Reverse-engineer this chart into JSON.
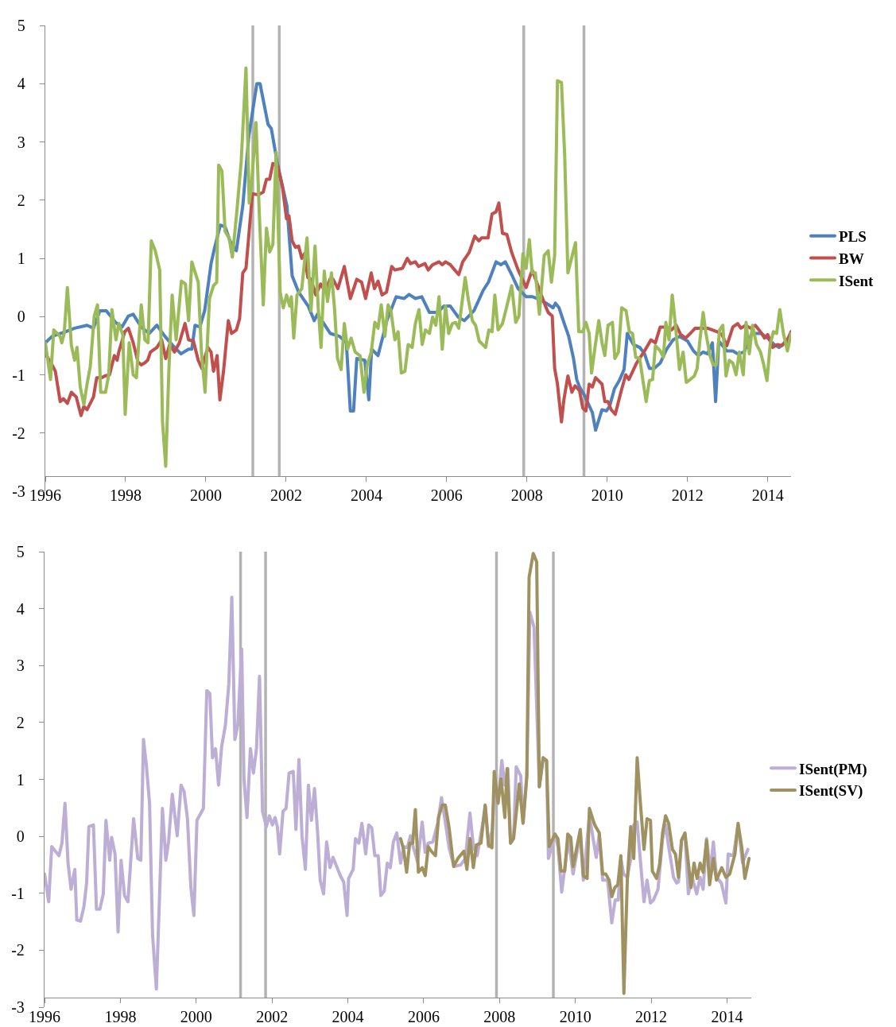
{
  "chart_data": [
    {
      "type": "line",
      "xlim": [
        1996,
        2014.58
      ],
      "xticks": [
        1996,
        1998,
        2000,
        2002,
        2004,
        2006,
        2008,
        2010,
        2012,
        2014
      ],
      "ylim": [
        -3,
        5
      ],
      "yticks": [
        -3,
        -2,
        -1,
        0,
        1,
        2,
        3,
        4,
        5
      ],
      "grid": false,
      "legend": "right",
      "ref_lines": [
        {
          "axis": "x",
          "value": 2001.17,
          "color": "#b3b3b3"
        },
        {
          "axis": "x",
          "value": 2001.83,
          "color": "#b3b3b3"
        },
        {
          "axis": "x",
          "value": 2007.92,
          "color": "#b3b3b3"
        },
        {
          "axis": "x",
          "value": 2009.42,
          "color": "#b3b3b3"
        }
      ],
      "series": [
        {
          "name": "PLS",
          "color": "#4f81bd",
          "x": [
            1996.0,
            1996.17,
            1996.5,
            1996.73,
            1997.04,
            1997.2,
            1997.36,
            1997.52,
            1997.75,
            1997.91,
            1998.07,
            1998.19,
            1998.39,
            1998.59,
            1998.78,
            1998.98,
            1999.18,
            1999.38,
            1999.57,
            1999.65,
            1999.73,
            1999.85,
            1999.97,
            2000.13,
            2000.21,
            2000.36,
            2000.48,
            2000.6,
            2000.76,
            2000.92,
            2001.07,
            2001.27,
            2001.35,
            2001.55,
            2001.63,
            2001.79,
            2002.02,
            2002.15,
            2002.31,
            2002.55,
            2002.7,
            2002.78,
            2002.94,
            2003.1,
            2003.33,
            2003.5,
            2003.6,
            2003.68,
            2003.76,
            2003.96,
            2004.06,
            2004.13,
            2004.29,
            2004.51,
            2004.74,
            2004.94,
            2005.06,
            2005.22,
            2005.38,
            2005.57,
            2005.77,
            2005.93,
            2006.09,
            2006.29,
            2006.44,
            2006.68,
            2006.91,
            2007.04,
            2007.23,
            2007.35,
            2007.46,
            2007.62,
            2007.78,
            2007.98,
            2008.14,
            2008.3,
            2008.48,
            2008.65,
            2008.71,
            2008.8,
            2008.92,
            2009.04,
            2009.16,
            2009.24,
            2009.31,
            2009.43,
            2009.63,
            2009.71,
            2009.87,
            2009.98,
            2010.06,
            2010.18,
            2010.3,
            2010.42,
            2010.5,
            2010.65,
            2010.81,
            2010.93,
            2011.05,
            2011.17,
            2011.32,
            2011.48,
            2011.64,
            2011.8,
            2012.0,
            2012.15,
            2012.27,
            2012.39,
            2012.5,
            2012.62,
            2012.7,
            2012.78,
            2012.98,
            2013.13,
            2013.25,
            2013.41,
            2013.6,
            2013.83,
            2014.0,
            2014.16,
            2014.28,
            2014.43,
            2014.58
          ],
          "values": [
            -0.45,
            -0.34,
            -0.26,
            -0.2,
            -0.15,
            -0.2,
            0.1,
            0.1,
            -0.1,
            -0.18,
            0.01,
            0.04,
            -0.18,
            -0.29,
            -0.15,
            -0.34,
            -0.5,
            -0.64,
            -0.56,
            -0.56,
            -0.15,
            -0.18,
            0.1,
            0.91,
            1.16,
            1.57,
            1.54,
            1.3,
            1.13,
            1.9,
            3.1,
            4.0,
            4.0,
            3.3,
            3.23,
            2.6,
            1.9,
            0.7,
            0.42,
            0.18,
            -0.07,
            0.04,
            -0.12,
            -0.29,
            -0.34,
            -0.45,
            -1.62,
            -1.62,
            -0.72,
            -0.75,
            -1.43,
            -0.56,
            -0.67,
            -0.07,
            0.34,
            0.31,
            0.38,
            0.31,
            0.34,
            0.07,
            0.07,
            0.18,
            0.18,
            -0.01,
            -0.07,
            0.1,
            0.45,
            0.59,
            0.94,
            0.89,
            0.94,
            0.72,
            0.48,
            0.34,
            0.34,
            0.3,
            0.23,
            0.15,
            0.23,
            0.15,
            -0.1,
            -0.34,
            -0.72,
            -1.08,
            -1.21,
            -1.35,
            -1.65,
            -1.95,
            -1.6,
            -1.62,
            -1.54,
            -1.24,
            -1.1,
            -0.91,
            -0.29,
            -0.48,
            -0.53,
            -0.64,
            -0.89,
            -0.89,
            -0.8,
            -0.56,
            -0.4,
            -0.34,
            -0.42,
            -0.59,
            -0.67,
            -0.61,
            -0.64,
            -0.45,
            -1.46,
            -0.42,
            -0.59,
            -0.59,
            -0.64,
            -0.61,
            -0.29,
            -0.29,
            -0.37,
            -0.48,
            -0.53,
            -0.45,
            -0.4
          ]
        },
        {
          "name": "BW",
          "color": "#c0504d",
          "x": [
            1996.0,
            1996.17,
            1996.25,
            1996.37,
            1996.45,
            1996.55,
            1996.65,
            1996.77,
            1996.89,
            1996.96,
            1997.04,
            1997.2,
            1997.28,
            1997.4,
            1997.48,
            1997.6,
            1997.72,
            1997.79,
            1997.83,
            1997.98,
            1998.07,
            1998.19,
            1998.31,
            1998.39,
            1998.47,
            1998.55,
            1998.62,
            1998.78,
            1998.9,
            1999.0,
            1999.1,
            1999.22,
            1999.34,
            1999.48,
            1999.57,
            1999.69,
            1999.81,
            1999.9,
            2000.05,
            2000.13,
            2000.19,
            2000.28,
            2000.35,
            2000.44,
            2000.56,
            2000.64,
            2000.76,
            2000.84,
            2000.92,
            2001.0,
            2001.12,
            2001.16,
            2001.31,
            2001.43,
            2001.51,
            2001.59,
            2001.67,
            2001.79,
            2001.91,
            2002.01,
            2002.07,
            2002.15,
            2002.23,
            2002.31,
            2002.39,
            2002.46,
            2002.54,
            2002.62,
            2002.74,
            2002.86,
            2002.98,
            2003.09,
            2003.17,
            2003.29,
            2003.45,
            2003.6,
            2003.76,
            2003.88,
            2003.98,
            2004.12,
            2004.2,
            2004.29,
            2004.39,
            2004.5,
            2004.63,
            2004.71,
            2004.9,
            2005.02,
            2005.1,
            2005.22,
            2005.3,
            2005.46,
            2005.54,
            2005.65,
            2005.81,
            2005.89,
            2005.97,
            2006.09,
            2006.2,
            2006.3,
            2006.4,
            2006.56,
            2006.7,
            2006.8,
            2006.87,
            2007.03,
            2007.13,
            2007.23,
            2007.3,
            2007.39,
            2007.5,
            2007.62,
            2007.78,
            2007.98,
            2008.13,
            2008.29,
            2008.45,
            2008.53,
            2008.63,
            2008.69,
            2008.76,
            2008.86,
            2008.92,
            2009.02,
            2009.12,
            2009.2,
            2009.31,
            2009.39,
            2009.47,
            2009.55,
            2009.63,
            2009.71,
            2009.87,
            2009.94,
            2010.02,
            2010.1,
            2010.2,
            2010.34,
            2010.46,
            2010.54,
            2010.73,
            2010.93,
            2011.09,
            2011.2,
            2011.32,
            2011.48,
            2011.6,
            2011.72,
            2011.83,
            2011.95,
            2012.07,
            2012.19,
            2012.35,
            2012.5,
            2012.62,
            2012.74,
            2012.86,
            2012.98,
            2013.13,
            2013.25,
            2013.33,
            2013.45,
            2013.57,
            2013.69,
            2013.85,
            2013.92,
            2014.0,
            2014.12,
            2014.24,
            2014.35,
            2014.51,
            2014.58
          ],
          "values": [
            -0.64,
            -0.83,
            -0.94,
            -1.46,
            -1.41,
            -1.49,
            -1.3,
            -1.38,
            -1.7,
            -1.54,
            -1.6,
            -1.38,
            -1.05,
            -1.05,
            -1.02,
            -1.0,
            -0.67,
            -0.75,
            -0.61,
            -0.26,
            -0.2,
            -0.45,
            -0.78,
            -0.83,
            -0.8,
            -0.75,
            -0.61,
            -0.53,
            -0.4,
            -0.72,
            -0.48,
            -0.61,
            -0.45,
            -0.12,
            -0.4,
            -0.42,
            -0.75,
            -0.89,
            -0.53,
            -0.61,
            -0.94,
            -0.67,
            -1.43,
            -0.94,
            -0.07,
            -0.29,
            -0.23,
            -0.04,
            0.75,
            0.83,
            1.79,
            2.11,
            2.09,
            2.14,
            2.36,
            2.36,
            2.63,
            2.58,
            2.22,
            1.68,
            1.73,
            1.3,
            1.19,
            1.21,
            1.0,
            1.08,
            0.67,
            0.64,
            0.37,
            0.56,
            0.42,
            0.64,
            0.64,
            0.48,
            0.86,
            0.31,
            0.64,
            0.59,
            0.31,
            0.75,
            0.48,
            0.61,
            0.37,
            0.42,
            0.86,
            0.8,
            0.83,
            1.0,
            0.91,
            0.94,
            0.86,
            0.91,
            0.8,
            0.89,
            0.94,
            0.89,
            0.94,
            0.89,
            0.8,
            0.72,
            0.94,
            1.1,
            1.38,
            1.3,
            1.35,
            1.35,
            1.76,
            1.8,
            1.95,
            1.43,
            1.41,
            1.1,
            0.8,
            0.5,
            0.8,
            0.5,
            0.2,
            0.07,
            0.01,
            -0.89,
            -1.16,
            -1.81,
            -1.43,
            -1.02,
            -1.3,
            -1.19,
            -1.27,
            -1.57,
            -1.62,
            -1.16,
            -1.21,
            -1.05,
            -1.16,
            -1.46,
            -1.46,
            -1.6,
            -1.68,
            -1.3,
            -1.0,
            -1.08,
            -0.8,
            -0.59,
            -0.4,
            -0.45,
            -0.18,
            -0.18,
            -0.23,
            -0.15,
            -0.31,
            -0.37,
            -0.29,
            -0.2,
            -0.2,
            -0.2,
            -0.23,
            -0.26,
            -0.31,
            -0.5,
            -0.18,
            -0.12,
            -0.2,
            -0.15,
            -0.2,
            -0.15,
            -0.29,
            -0.37,
            -0.31,
            -0.53,
            -0.48,
            -0.5,
            -0.37,
            -0.26
          ]
        },
        {
          "name": "ISent",
          "color": "#9bbb59",
          "x": [
            1996.0,
            1996.13,
            1996.21,
            1996.37,
            1996.41,
            1996.47,
            1996.55,
            1996.65,
            1996.73,
            1996.79,
            1996.87,
            1996.96,
            1997.04,
            1997.12,
            1997.22,
            1997.3,
            1997.38,
            1997.5,
            1997.58,
            1997.66,
            1997.76,
            1997.83,
            1997.93,
            1997.99,
            1998.09,
            1998.19,
            1998.27,
            1998.39,
            1998.48,
            1998.56,
            1998.64,
            1998.74,
            1998.85,
            1998.92,
            1999.0,
            1999.08,
            1999.16,
            1999.26,
            1999.39,
            1999.49,
            1999.57,
            1999.65,
            1999.81,
            1999.89,
            1999.98,
            2000.09,
            2000.19,
            2000.27,
            2000.32,
            2000.4,
            2000.48,
            2000.58,
            2000.66,
            2000.77,
            2000.88,
            2001.0,
            2001.08,
            2001.14,
            2001.25,
            2001.33,
            2001.43,
            2001.51,
            2001.59,
            2001.67,
            2001.75,
            2001.85,
            2001.93,
            2002.01,
            2002.09,
            2002.13,
            2002.19,
            2002.27,
            2002.39,
            2002.52,
            2002.62,
            2002.72,
            2002.8,
            2002.87,
            2002.95,
            2003.03,
            2003.13,
            2003.21,
            2003.28,
            2003.37,
            2003.45,
            2003.53,
            2003.62,
            2003.72,
            2003.84,
            2003.94,
            2004.02,
            2004.12,
            2004.21,
            2004.29,
            2004.37,
            2004.46,
            2004.54,
            2004.61,
            2004.71,
            2004.79,
            2004.87,
            2004.96,
            2005.04,
            2005.14,
            2005.22,
            2005.31,
            2005.39,
            2005.47,
            2005.57,
            2005.65,
            2005.73,
            2005.81,
            2005.89,
            2005.97,
            2006.05,
            2006.14,
            2006.22,
            2006.3,
            2006.38,
            2006.46,
            2006.54,
            2006.64,
            2006.72,
            2006.81,
            2006.97,
            2007.05,
            2007.13,
            2007.2,
            2007.28,
            2007.39,
            2007.5,
            2007.62,
            2007.72,
            2007.8,
            2007.9,
            2007.98,
            2008.06,
            2008.13,
            2008.21,
            2008.31,
            2008.43,
            2008.53,
            2008.61,
            2008.69,
            2008.76,
            2008.86,
            2008.94,
            2009.02,
            2009.1,
            2009.21,
            2009.29,
            2009.39,
            2009.47,
            2009.55,
            2009.61,
            2009.69,
            2009.79,
            2009.87,
            2009.94,
            2010.02,
            2010.13,
            2010.19,
            2010.28,
            2010.36,
            2010.47,
            2010.55,
            2010.63,
            2010.71,
            2010.81,
            2010.89,
            2010.97,
            2011.05,
            2011.13,
            2011.2,
            2011.32,
            2011.4,
            2011.46,
            2011.54,
            2011.62,
            2011.7,
            2011.8,
            2011.89,
            2011.97,
            2012.07,
            2012.17,
            2012.24,
            2012.31,
            2012.39,
            2012.46,
            2012.56,
            2012.64,
            2012.72,
            2012.8,
            2012.88,
            2012.96,
            2013.04,
            2013.13,
            2013.21,
            2013.29,
            2013.39,
            2013.46,
            2013.54,
            2013.62,
            2013.72,
            2013.82,
            2013.9,
            2013.98,
            2014.06,
            2014.14,
            2014.22,
            2014.3,
            2014.39,
            2014.49,
            2014.58
          ],
          "values": [
            -0.45,
            -1.08,
            -0.23,
            -0.34,
            -0.45,
            -0.29,
            0.5,
            -0.5,
            -0.75,
            -0.53,
            -1.21,
            -1.51,
            -1.16,
            -0.86,
            0.01,
            0.2,
            -1.3,
            -1.3,
            -1.0,
            0.12,
            -0.4,
            -0.12,
            -0.31,
            -1.68,
            -0.45,
            -1.0,
            -1.05,
            0.2,
            -0.4,
            -0.45,
            1.3,
            1.13,
            0.8,
            -1.81,
            -2.57,
            -0.89,
            0.37,
            -0.4,
            0.61,
            0.56,
            -0.07,
            0.94,
            0.59,
            -0.61,
            -1.3,
            0.31,
            0.53,
            0.59,
            2.6,
            2.5,
            1.46,
            1.35,
            1.02,
            1.79,
            2.66,
            4.27,
            1.95,
            2.28,
            3.33,
            1.79,
            0.2,
            1.52,
            1.11,
            1.24,
            2.82,
            0.42,
            0.15,
            0.37,
            0.18,
            0.34,
            -0.37,
            0.37,
            0.48,
            1.35,
            0.1,
            1.21,
            0.15,
            -0.53,
            0.78,
            0.26,
            0.75,
            0.1,
            -0.72,
            -0.91,
            -0.12,
            -0.56,
            -0.37,
            -0.61,
            -0.67,
            -1.3,
            -0.83,
            -0.61,
            -0.1,
            -0.2,
            0.2,
            -0.34,
            0.2,
            0.1,
            -0.4,
            -0.26,
            -0.97,
            -0.94,
            -0.48,
            -0.53,
            -0.12,
            0.12,
            -0.48,
            -0.23,
            -0.29,
            -0.01,
            -0.15,
            0.34,
            -0.56,
            0.18,
            -0.29,
            -0.12,
            -0.1,
            -0.2,
            0.23,
            0.67,
            0.29,
            -0.07,
            -0.15,
            -0.42,
            -0.53,
            -0.23,
            -0.26,
            0.37,
            -0.23,
            -0.12,
            0.18,
            0.53,
            -0.1,
            0.01,
            1.08,
            0.83,
            1.32,
            0.75,
            0.75,
            0.04,
            1.05,
            1.13,
            0.59,
            1.05,
            4.05,
            4.02,
            2.77,
            0.75,
            0.97,
            1.27,
            -0.26,
            -0.26,
            -0.1,
            -0.29,
            -0.97,
            -0.56,
            -0.07,
            -0.45,
            -0.67,
            -0.15,
            -0.1,
            -0.72,
            -0.61,
            0.15,
            0.1,
            -0.26,
            -0.29,
            -0.7,
            -0.72,
            -1.1,
            -1.46,
            -1.1,
            -1.08,
            -0.5,
            -0.59,
            -0.7,
            -0.1,
            -0.4,
            0.37,
            -0.15,
            -0.91,
            -0.61,
            -1.13,
            -1.08,
            -1.02,
            -0.89,
            -0.4,
            0.07,
            -0.29,
            -0.67,
            -0.83,
            -0.83,
            -0.23,
            -0.15,
            -1.02,
            -0.75,
            -0.8,
            -1.0,
            -0.61,
            -1.0,
            -0.1,
            -0.64,
            -0.15,
            -0.48,
            -0.61,
            -0.83,
            -1.1,
            -0.48,
            -0.26,
            -0.29,
            0.12,
            -0.29,
            -0.59,
            -0.29
          ]
        }
      ]
    },
    {
      "type": "line",
      "xlim": [
        1996,
        2014.64
      ],
      "xticks": [
        1996,
        1998,
        2000,
        2002,
        2004,
        2006,
        2008,
        2010,
        2012,
        2014
      ],
      "ylim": [
        -3,
        5
      ],
      "yticks": [
        -3,
        -2,
        -1,
        0,
        1,
        2,
        3,
        4,
        5
      ],
      "grid": false,
      "legend": "right",
      "ref_lines": [
        {
          "axis": "x",
          "value": 2001.17,
          "color": "#b3b3b3"
        },
        {
          "axis": "x",
          "value": 2001.83,
          "color": "#b3b3b3"
        },
        {
          "axis": "x",
          "value": 2007.92,
          "color": "#b3b3b3"
        },
        {
          "axis": "x",
          "value": 2009.42,
          "color": "#b3b3b3"
        }
      ],
      "series": [
        {
          "name": "ISent(PM)",
          "color": "#bcaed4",
          "x": [
            1996.0,
            1996.11,
            1996.19,
            1996.38,
            1996.46,
            1996.54,
            1996.62,
            1996.7,
            1996.8,
            1996.85,
            1996.95,
            1997.04,
            1997.11,
            1997.17,
            1997.29,
            1997.37,
            1997.46,
            1997.55,
            1997.62,
            1997.72,
            1997.77,
            1997.86,
            1997.94,
            1998.02,
            1998.11,
            1998.2,
            1998.35,
            1998.46,
            1998.54,
            1998.61,
            1998.69,
            1998.77,
            1998.85,
            1998.95,
            1999.03,
            1999.11,
            1999.2,
            1999.27,
            1999.37,
            1999.5,
            1999.6,
            1999.68,
            1999.77,
            1999.86,
            1999.94,
            2000.02,
            2000.19,
            2000.28,
            2000.36,
            2000.43,
            2000.51,
            2000.59,
            2000.67,
            2000.77,
            2000.86,
            2000.94,
            2001.02,
            2001.1,
            2001.2,
            2001.26,
            2001.34,
            2001.43,
            2001.51,
            2001.59,
            2001.67,
            2001.75,
            2001.85,
            2001.93,
            2002.01,
            2002.08,
            2002.14,
            2002.2,
            2002.29,
            2002.37,
            2002.45,
            2002.56,
            2002.63,
            2002.71,
            2002.79,
            2002.88,
            2002.96,
            2003.04,
            2003.12,
            2003.2,
            2003.27,
            2003.36,
            2003.44,
            2003.53,
            2003.61,
            2003.8,
            2003.89,
            2003.98,
            2004.02,
            2004.14,
            2004.2,
            2004.29,
            2004.37,
            2004.47,
            2004.55,
            2004.63,
            2004.71,
            2004.8,
            2004.87,
            2004.96,
            2005.04,
            2005.12,
            2005.2,
            2005.29,
            2005.39,
            2005.47,
            2005.57,
            2005.65,
            2005.73,
            2005.84,
            2005.96,
            2006.04,
            2006.12,
            2006.24,
            2006.37,
            2006.47,
            2006.57,
            2006.67,
            2006.8,
            2006.98,
            2007.1,
            2007.22,
            2007.31,
            2007.41,
            2007.55,
            2007.63,
            2007.71,
            2007.81,
            2007.88,
            2007.96,
            2008.06,
            2008.14,
            2008.22,
            2008.29,
            2008.37,
            2008.44,
            2008.56,
            2008.62,
            2008.72,
            2008.8,
            2008.91,
            2009.05,
            2009.15,
            2009.24,
            2009.29,
            2009.46,
            2009.54,
            2009.64,
            2009.74,
            2009.82,
            2009.94,
            2010.13,
            2010.21,
            2010.37,
            2010.55,
            2010.63,
            2010.72,
            2010.85,
            2010.96,
            2011.05,
            2011.13,
            2011.2,
            2011.27,
            2011.37,
            2011.46,
            2011.54,
            2011.63,
            2011.71,
            2011.81,
            2011.89,
            2011.98,
            2012.06,
            2012.18,
            2012.3,
            2012.38,
            2012.46,
            2012.59,
            2012.67,
            2012.72,
            2012.8,
            2012.89,
            2012.98,
            2013.08,
            2013.2,
            2013.29,
            2013.37,
            2013.46,
            2013.56,
            2013.64,
            2013.72,
            2013.85,
            2013.97,
            2014.03,
            2014.17,
            2014.29,
            2014.41,
            2014.55
          ],
          "values": [
            -0.66,
            -1.15,
            -0.18,
            -0.34,
            -0.12,
            0.58,
            -0.47,
            -0.93,
            -0.58,
            -1.47,
            -1.49,
            -1.23,
            -0.82,
            0.17,
            0.2,
            -1.28,
            -1.28,
            -1.01,
            0.28,
            -0.42,
            -0.02,
            -0.31,
            -1.68,
            -0.42,
            -1.04,
            -1.15,
            0.31,
            -0.39,
            -0.42,
            1.7,
            1.22,
            0.58,
            -1.74,
            -2.68,
            -1.12,
            0.49,
            -0.42,
            -0.1,
            0.74,
            0.01,
            0.9,
            0.79,
            0.31,
            -0.9,
            -1.39,
            0.28,
            0.49,
            2.56,
            2.51,
            1.38,
            1.54,
            0.9,
            1.57,
            1.95,
            2.67,
            4.2,
            1.7,
            1.97,
            3.29,
            1.01,
            0.33,
            1.54,
            1.11,
            1.54,
            2.81,
            0.44,
            0.17,
            0.36,
            0.2,
            0.33,
            0.17,
            -0.31,
            0.44,
            0.49,
            1.11,
            1.14,
            0.12,
            1.35,
            0.01,
            -0.58,
            0.9,
            0.28,
            0.84,
            0.09,
            -0.77,
            -1.01,
            -0.1,
            -0.55,
            -0.37,
            -0.69,
            -0.8,
            -1.39,
            -0.74,
            -0.58,
            -0.04,
            -0.12,
            0.23,
            -0.31,
            0.2,
            0.15,
            -0.34,
            -0.34,
            -1.04,
            -0.96,
            -0.47,
            -0.55,
            -0.1,
            0.06,
            -0.47,
            -0.18,
            -0.2,
            0.01,
            -0.2,
            -0.45,
            0.25,
            -0.28,
            -0.12,
            -0.1,
            0.23,
            0.68,
            0.25,
            -0.2,
            -0.53,
            -0.5,
            -0.39,
            0.41,
            -0.18,
            -0.34,
            0.2,
            0.52,
            -0.18,
            0.12,
            1.06,
            0.58,
            1.33,
            0.9,
            1.19,
            -0.12,
            -0.04,
            1.22,
            1.06,
            0.23,
            1.06,
            3.94,
            3.67,
            0.87,
            1.38,
            1.33,
            -0.39,
            0.04,
            -0.18,
            -0.98,
            -0.45,
            -0.04,
            -0.66,
            0.04,
            -0.77,
            0.36,
            -0.37,
            0.04,
            -0.77,
            -0.77,
            -1.52,
            -1.12,
            -1.12,
            -0.39,
            -0.66,
            -0.72,
            -0.39,
            0.2,
            0.25,
            -0.39,
            -1.15,
            -0.77,
            -1.17,
            -1.12,
            -0.93,
            -0.04,
            0.2,
            -0.18,
            -0.72,
            -0.82,
            -0.8,
            -0.07,
            0.04,
            -1.01,
            -0.72,
            -1.01,
            -0.72,
            -0.93,
            -0.04,
            -0.61,
            -0.1,
            -0.72,
            -0.82,
            -1.17,
            -0.31,
            -0.34,
            0.2,
            -0.47,
            -0.23
          ]
        },
        {
          "name": "ISent(SV)",
          "color": "#9f9260",
          "x": [
            2005.39,
            2005.47,
            2005.55,
            2005.63,
            2005.71,
            2005.78,
            2005.86,
            2005.96,
            2006.04,
            2006.12,
            2006.2,
            2006.31,
            2006.39,
            2006.49,
            2006.57,
            2006.67,
            2006.79,
            2006.9,
            2007.06,
            2007.14,
            2007.22,
            2007.31,
            2007.39,
            2007.51,
            2007.62,
            2007.71,
            2007.8,
            2007.86,
            2007.96,
            2008.04,
            2008.14,
            2008.2,
            2008.29,
            2008.37,
            2008.52,
            2008.62,
            2008.72,
            2008.78,
            2008.89,
            2008.98,
            2009.05,
            2009.15,
            2009.24,
            2009.31,
            2009.46,
            2009.54,
            2009.62,
            2009.72,
            2009.8,
            2009.88,
            2009.94,
            2010.13,
            2010.21,
            2010.31,
            2010.37,
            2010.51,
            2010.63,
            2010.72,
            2010.8,
            2010.89,
            2010.96,
            2011.04,
            2011.12,
            2011.2,
            2011.28,
            2011.37,
            2011.46,
            2011.54,
            2011.63,
            2011.71,
            2011.81,
            2011.89,
            2011.98,
            2012.03,
            2012.14,
            2012.22,
            2012.3,
            2012.38,
            2012.46,
            2012.56,
            2012.64,
            2012.72,
            2012.8,
            2012.89,
            2012.99,
            2013.05,
            2013.13,
            2013.21,
            2013.29,
            2013.37,
            2013.46,
            2013.54,
            2013.64,
            2013.72,
            2013.86,
            2013.97,
            2014.07,
            2014.21,
            2014.29,
            2014.39,
            2014.47,
            2014.58
          ],
          "values": [
            -0.04,
            -0.23,
            -0.63,
            -0.12,
            -0.12,
            0.47,
            -0.63,
            -0.55,
            -0.69,
            -0.18,
            -0.26,
            -0.34,
            0.33,
            0.55,
            0.55,
            0.15,
            -0.53,
            -0.39,
            -0.26,
            -0.58,
            -0.04,
            -0.55,
            -0.15,
            -0.12,
            0.55,
            -0.15,
            -0.2,
            1.14,
            0.58,
            1.01,
            0.33,
            1.19,
            -0.12,
            -0.04,
            0.92,
            0.23,
            1.06,
            4.55,
            4.97,
            4.82,
            0.87,
            1.38,
            1.33,
            -0.18,
            0.04,
            -0.04,
            -0.61,
            -0.61,
            0.04,
            -0.02,
            -0.53,
            0.12,
            -0.69,
            -0.74,
            0.49,
            0.2,
            0.06,
            -0.66,
            -0.66,
            -0.77,
            -1.06,
            -0.9,
            -0.85,
            -0.34,
            -2.76,
            -0.77,
            0.17,
            -0.39,
            1.38,
            0.63,
            -0.23,
            0.31,
            0.28,
            -0.61,
            -0.74,
            -0.5,
            0.06,
            0.36,
            0.23,
            -0.23,
            -0.31,
            -0.72,
            -0.07,
            0.06,
            -0.53,
            -0.9,
            -0.47,
            -0.74,
            -0.47,
            -0.63,
            -0.07,
            -0.85,
            -0.39,
            -0.77,
            -0.55,
            -0.72,
            -0.66,
            -0.31,
            0.23,
            -0.2,
            -0.74,
            -0.39
          ]
        }
      ]
    }
  ]
}
